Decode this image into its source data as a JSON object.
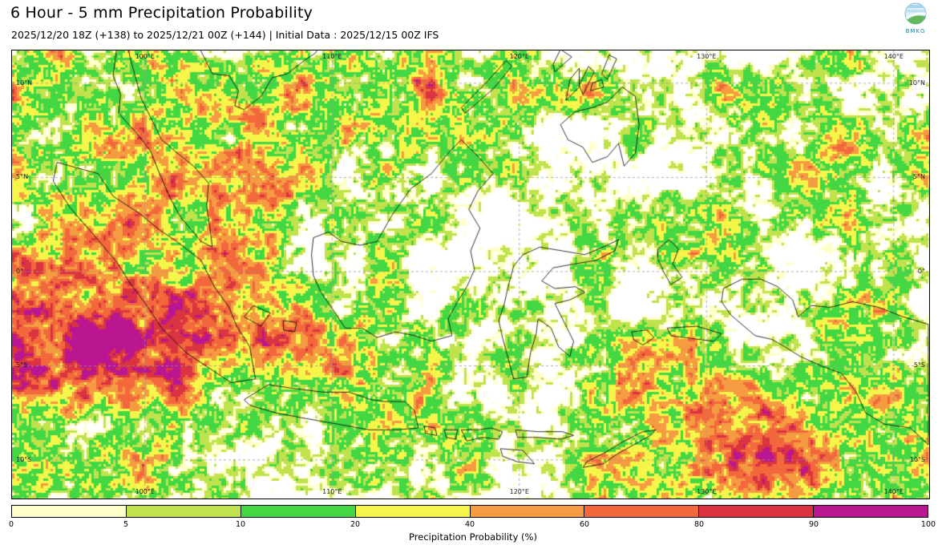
{
  "header": {
    "title": "6 Hour - 5 mm Precipitation Probability",
    "subtitle": "2025/12/20 18Z (+138) to 2025/12/21 00Z (+144) | Initial Data : 2025/12/15 00Z IFS",
    "logo_label": "BMKG"
  },
  "map": {
    "lon_labels": [
      "100°E",
      "110°E",
      "120°E",
      "130°E",
      "140°E"
    ],
    "lat_labels": [
      "10°N",
      "5°N",
      "0°",
      "5°S",
      "10°S"
    ]
  },
  "colorbar": {
    "label": "Precipitation Probability (%)",
    "ticks": [
      "0",
      "5",
      "10",
      "20",
      "40",
      "60",
      "80",
      "90",
      "100"
    ],
    "colors": [
      "#ffffc9",
      "#bfe24d",
      "#43d843",
      "#f5f54a",
      "#f59b41",
      "#f2683c",
      "#d93440",
      "#bb1691"
    ]
  },
  "chart_data": {
    "type": "heatmap",
    "title": "6 Hour - 5 mm Precipitation Probability",
    "subtitle": "2025/12/20 18Z (+138) to 2025/12/21 00Z (+144) | Initial Data : 2025/12/15 00Z IFS",
    "variable": "Precipitation Probability (%)",
    "colorscale_breaks": [
      0,
      5,
      10,
      20,
      40,
      60,
      80,
      90,
      100
    ],
    "colorscale_colors": [
      "#ffffc9",
      "#bfe24d",
      "#43d843",
      "#f5f54a",
      "#f59b41",
      "#f2683c",
      "#d93440",
      "#bb1691"
    ],
    "x_ticks": [
      "100°E",
      "110°E",
      "120°E",
      "130°E",
      "140°E"
    ],
    "y_ticks": [
      "10°N",
      "5°N",
      "0°",
      "5°S",
      "10°S"
    ]
  }
}
